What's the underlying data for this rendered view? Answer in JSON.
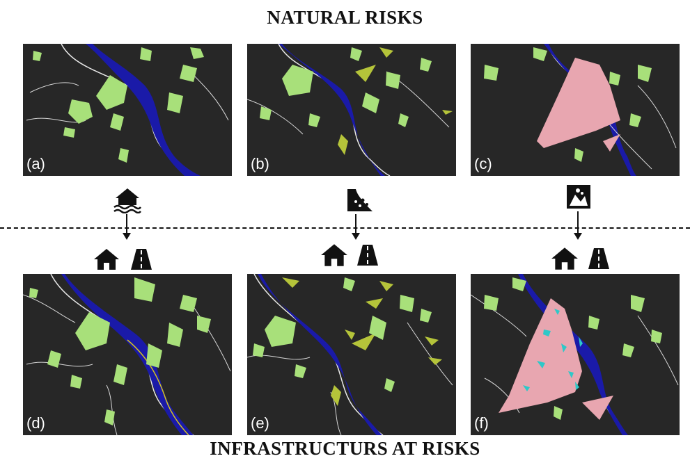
{
  "titles": {
    "top": "NATURAL RISKS",
    "bottom": "INFRASTRUCTURS AT RISKS"
  },
  "panels": [
    {
      "id": "a",
      "label": "(a)",
      "risk": "flood"
    },
    {
      "id": "b",
      "label": "(b)",
      "risk": "landslide"
    },
    {
      "id": "c",
      "label": "(c)",
      "risk": "rockfall"
    },
    {
      "id": "d",
      "label": "(d)",
      "risk": "flood-infrastructure"
    },
    {
      "id": "e",
      "label": "(e)",
      "risk": "landslide-infrastructure"
    },
    {
      "id": "f",
      "label": "(f)",
      "risk": "rockfall-infrastructure"
    }
  ],
  "icons": {
    "hazard_1": "flooded-house-icon",
    "hazard_2": "landslide-icon",
    "hazard_3": "rockfall-icon",
    "building": "house-icon",
    "road": "road-icon"
  },
  "colors": {
    "map_background": "#272727",
    "river": "#1a1aa8",
    "settlements": "#a8e07a",
    "landslide": "#b5c43a",
    "rockfall": "#e8a6b0",
    "roads": "#d8d8d8",
    "exposed_infrastructure": "#2ec8c8"
  }
}
